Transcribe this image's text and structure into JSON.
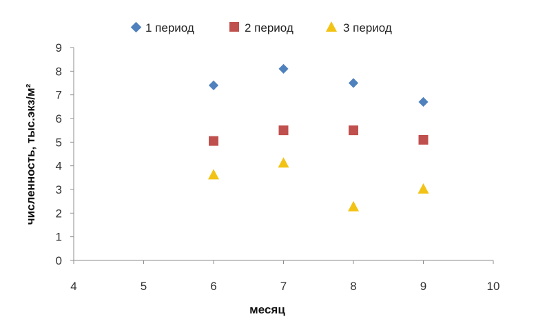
{
  "chart_data": {
    "type": "scatter",
    "title": "",
    "xlabel": "месяц",
    "ylabel": "численность, тыс.экз/м²",
    "xlim": [
      4,
      10
    ],
    "ylim": [
      0,
      9
    ],
    "x_ticks": [
      "4",
      "5",
      "6",
      "7",
      "8",
      "9",
      "10"
    ],
    "y_ticks": [
      "0",
      "1",
      "2",
      "3",
      "4",
      "5",
      "6",
      "7",
      "8",
      "9"
    ],
    "grid": false,
    "legend_position": "top",
    "series": [
      {
        "name": "1 период",
        "marker": "diamond",
        "color": "#4F81BD",
        "x": [
          6,
          7,
          8,
          9
        ],
        "y": [
          7.4,
          8.1,
          7.5,
          6.7
        ]
      },
      {
        "name": "2 период",
        "marker": "square",
        "color": "#C0504D",
        "x": [
          6,
          7,
          8,
          9
        ],
        "y": [
          5.05,
          5.5,
          5.5,
          5.1
        ]
      },
      {
        "name": "3 период",
        "marker": "triangle",
        "color": "#F2C314",
        "x": [
          6,
          7,
          8,
          9
        ],
        "y": [
          3.6,
          4.1,
          2.25,
          3.0
        ]
      }
    ]
  }
}
